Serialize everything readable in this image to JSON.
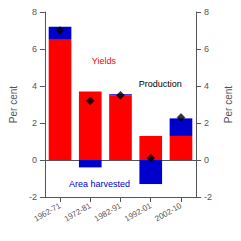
{
  "chart_data": {
    "type": "bar",
    "categories": [
      "1962-71",
      "1972-81",
      "1982-91",
      "1992-01",
      "2002-10"
    ],
    "stacked": true,
    "grid": false,
    "ylabel": "Per cent",
    "y2label": "Per cent",
    "ylim": [
      -2,
      8
    ],
    "yticks": [
      -2,
      0,
      2,
      4,
      6,
      8
    ],
    "y2lim": [
      -2,
      8
    ],
    "y2ticks": [
      -2,
      0,
      2,
      4,
      6,
      8
    ],
    "series": [
      {
        "name": "Yields",
        "type": "bar",
        "color": "#FF0000",
        "values": [
          6.5,
          3.7,
          3.5,
          1.3,
          1.3
        ]
      },
      {
        "name": "Area harvested",
        "type": "bar",
        "color": "#0000CC",
        "values": [
          0.7,
          -0.4,
          0.05,
          -1.3,
          0.95
        ]
      },
      {
        "name": "Production",
        "type": "scatter",
        "marker": "diamond",
        "color": "#000000",
        "values": [
          7.0,
          3.2,
          3.5,
          0.1,
          2.3
        ]
      }
    ]
  }
}
